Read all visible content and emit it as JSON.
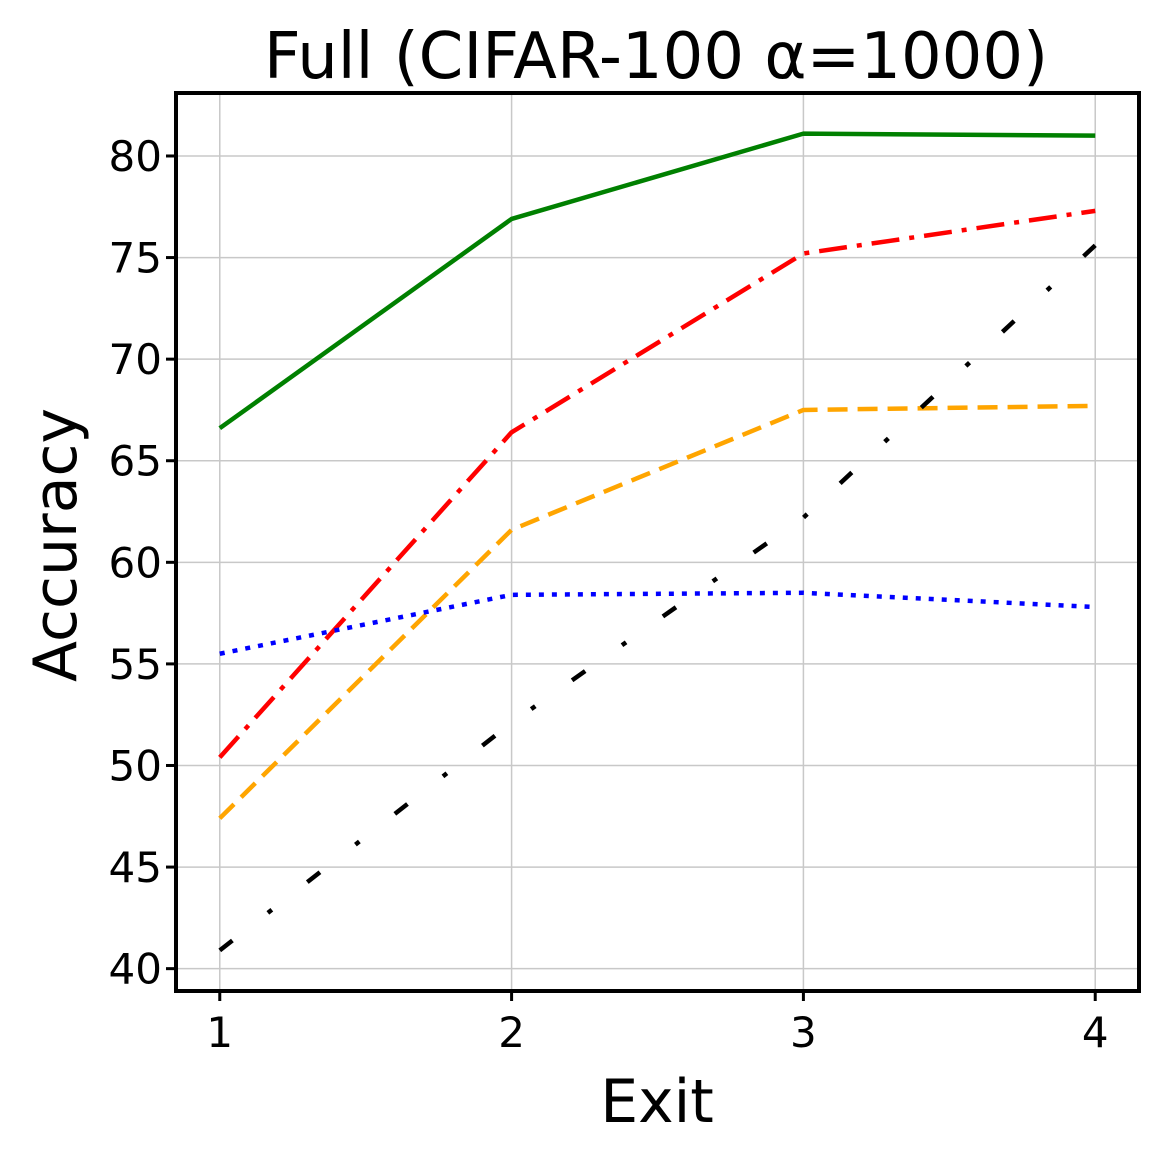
{
  "chart_data": {
    "type": "line",
    "title": "Full (CIFAR-100 α=1000)",
    "xlabel": "Exit",
    "ylabel": "Accuracy",
    "x": [
      1,
      2,
      3,
      4
    ],
    "xlim": [
      0.85,
      4.15
    ],
    "ylim": [
      38.9,
      83.1
    ],
    "yticks": [
      40,
      45,
      50,
      55,
      60,
      65,
      70,
      75,
      80
    ],
    "grid": true,
    "legend": "none",
    "series": [
      {
        "values": [
          66.6,
          76.9,
          81.1,
          81.0
        ],
        "color": "#008000",
        "dash": "solid"
      },
      {
        "values": [
          50.4,
          66.4,
          75.2,
          77.3
        ],
        "color": "#ff0000",
        "dash": "dashdot"
      },
      {
        "values": [
          47.4,
          61.6,
          67.5,
          67.7
        ],
        "color": "#ffa500",
        "dash": "dashed"
      },
      {
        "values": [
          55.5,
          58.4,
          58.5,
          57.8
        ],
        "color": "#0000ff",
        "dash": "dotted"
      },
      {
        "values": [
          40.9,
          52.1,
          62.2,
          75.6
        ],
        "color": "#000000",
        "dash": "loosely-dashdot"
      }
    ]
  }
}
